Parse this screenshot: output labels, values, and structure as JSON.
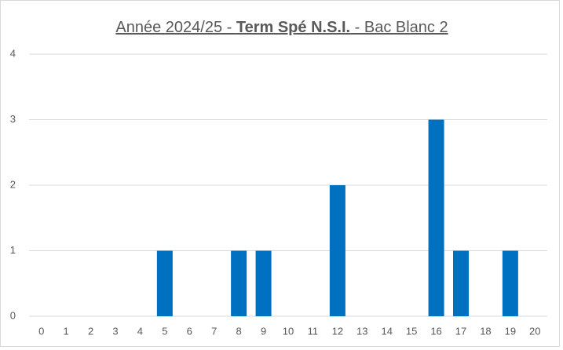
{
  "chart_data": {
    "type": "bar",
    "title_parts": [
      "Année 2024/25 - ",
      "Term Spé N.S.I.",
      " - Bac Blanc 2"
    ],
    "categories": [
      "0",
      "1",
      "2",
      "3",
      "4",
      "5",
      "6",
      "7",
      "8",
      "9",
      "10",
      "11",
      "12",
      "13",
      "14",
      "15",
      "16",
      "17",
      "18",
      "19",
      "20"
    ],
    "values": [
      0,
      0,
      0,
      0,
      0,
      1,
      0,
      0,
      1,
      1,
      0,
      0,
      2,
      0,
      0,
      0,
      3,
      1,
      0,
      1,
      0
    ],
    "color": "#0070c0",
    "ylim": [
      0,
      4
    ],
    "yticks": [
      0,
      1,
      2,
      3,
      4
    ],
    "grid": true
  }
}
